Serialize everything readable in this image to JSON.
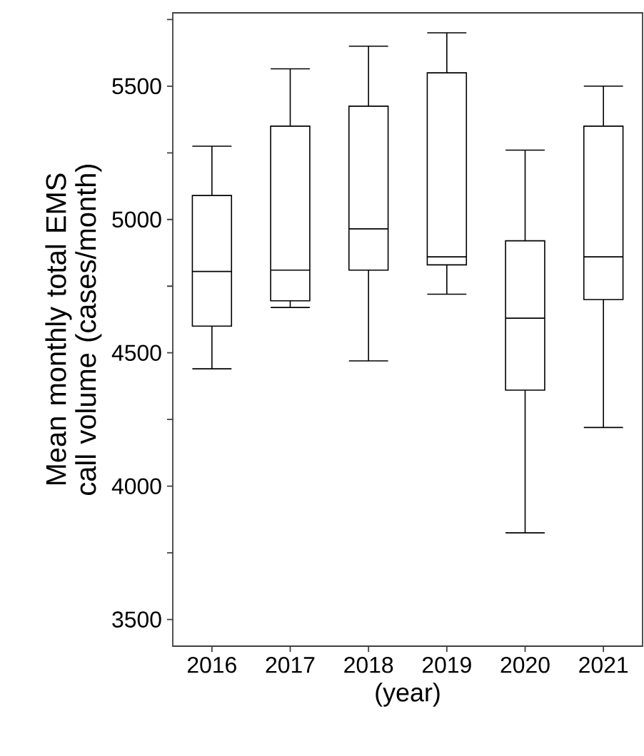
{
  "chart_data": {
    "type": "box",
    "ylabel": "Mean monthly total EMS call volume (cases/month)",
    "xlabel": "(year)",
    "categories": [
      "2016",
      "2017",
      "2018",
      "2019",
      "2020",
      "2021"
    ],
    "boxes": [
      {
        "low": 4440,
        "q1": 4600,
        "median": 4805,
        "q3": 5090,
        "high": 5275
      },
      {
        "low": 4670,
        "q1": 4695,
        "median": 4810,
        "q3": 5350,
        "high": 5565
      },
      {
        "low": 4470,
        "q1": 4810,
        "median": 4965,
        "q3": 5425,
        "high": 5650
      },
      {
        "low": 4720,
        "q1": 4830,
        "median": 4860,
        "q3": 5550,
        "high": 5700
      },
      {
        "low": 3825,
        "q1": 4360,
        "median": 4630,
        "q3": 4920,
        "high": 5260
      },
      {
        "low": 4220,
        "q1": 4700,
        "median": 4860,
        "q3": 5350,
        "high": 5500
      }
    ],
    "color": "#000000",
    "ylim": [
      3400,
      5775
    ],
    "yticks": [
      3500,
      {
        "value": 3750,
        "label": null
      },
      4000,
      {
        "value": 4250,
        "label": null
      },
      4500,
      {
        "value": 4750,
        "label": null
      },
      5000,
      {
        "value": 5250,
        "label": null
      },
      5500,
      {
        "value": 5750,
        "label": null
      }
    ],
    "grid": false
  }
}
